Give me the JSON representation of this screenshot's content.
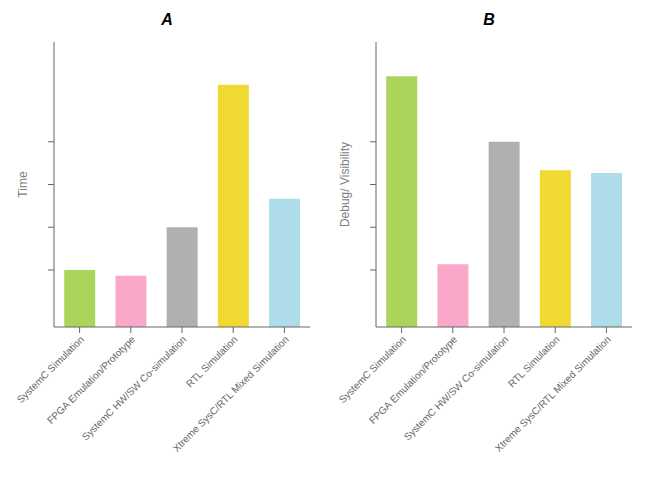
{
  "chart_data": [
    {
      "type": "bar",
      "title": "A",
      "ylabel": "Time",
      "categories": [
        "SystemC Simulation",
        "FPGA Emulation/Prototype",
        "SystemC HW/SW Co-simulation",
        "RTL Simulation",
        "Xtreme SysC/RTL Mixed Simulation"
      ],
      "values": [
        2.0,
        1.8,
        3.5,
        8.5,
        4.5
      ],
      "colors": [
        "#aad45a",
        "#f9a8c9",
        "#b0b0b0",
        "#f0d930",
        "#aedce8"
      ],
      "ylim": [
        0,
        10
      ],
      "yticks": [
        2,
        3.5,
        5,
        6.5
      ],
      "tick_labels": "x"
    },
    {
      "type": "bar",
      "title": "B",
      "ylabel": "Debug/ Visibility",
      "categories": [
        "SystemC Simulation",
        "FPGA Emulation/Prototype",
        "SystemC HW/SW Co-simulation",
        "RTL Simulation",
        "Xtreme SysC/RTL Mixed Simulation"
      ],
      "values": [
        8.8,
        2.2,
        6.5,
        5.5,
        5.4
      ],
      "colors": [
        "#aad45a",
        "#f9a8c9",
        "#b0b0b0",
        "#f0d930",
        "#aedce8"
      ],
      "ylim": [
        0,
        10
      ],
      "yticks": [
        2,
        3.5,
        5,
        6.5
      ],
      "tick_labels": "x"
    }
  ]
}
